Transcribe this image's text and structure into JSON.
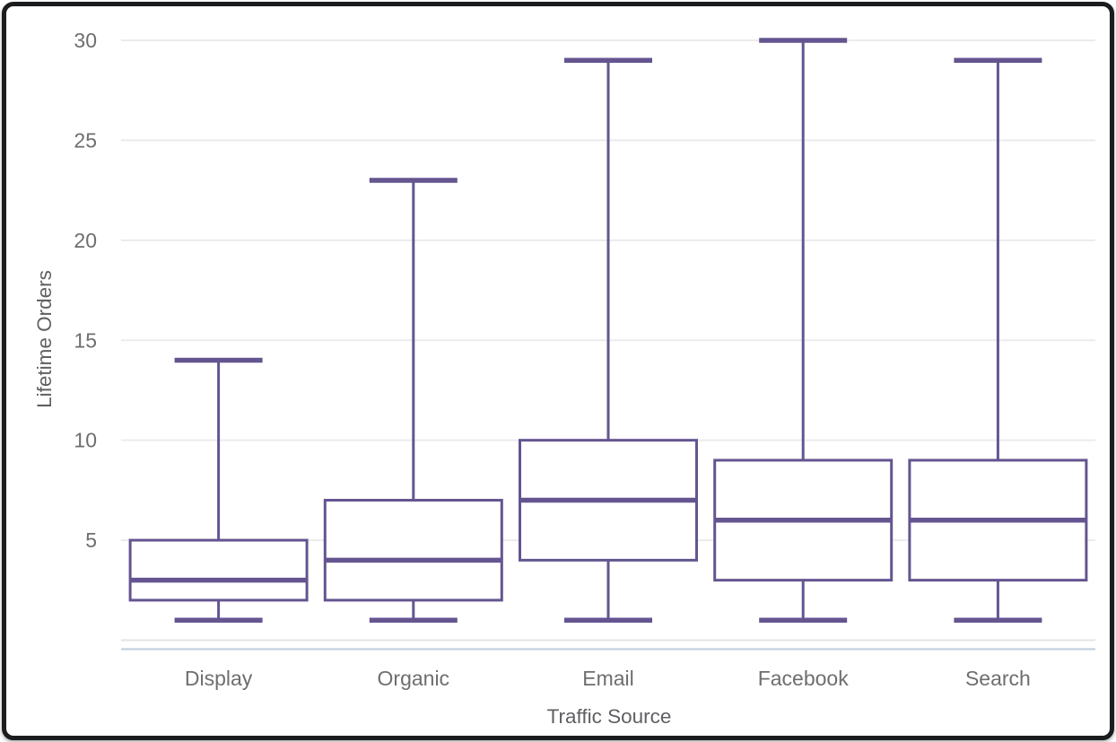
{
  "chart_data": {
    "type": "boxplot",
    "title": "",
    "xlabel": "Traffic Source",
    "ylabel": "Lifetime Orders",
    "categories": [
      "Display",
      "Organic",
      "Email",
      "Facebook",
      "Search"
    ],
    "series": [
      {
        "name": "Display",
        "min": 1,
        "q1": 2,
        "median": 3,
        "q3": 5,
        "max": 14
      },
      {
        "name": "Organic",
        "min": 1,
        "q1": 2,
        "median": 4,
        "q3": 7,
        "max": 23
      },
      {
        "name": "Email",
        "min": 1,
        "q1": 4,
        "median": 7,
        "q3": 10,
        "max": 29
      },
      {
        "name": "Facebook",
        "min": 1,
        "q1": 3,
        "median": 6,
        "q3": 9,
        "max": 30
      },
      {
        "name": "Search",
        "min": 1,
        "q1": 3,
        "median": 6,
        "q3": 9,
        "max": 29
      }
    ],
    "y_ticks": [
      5,
      10,
      15,
      20,
      25,
      30
    ],
    "ylim": [
      0,
      30
    ],
    "grid": true,
    "legend": "none",
    "colors": {
      "box_stroke": "#645590",
      "box_fill": "#ffffff",
      "grid_line": "#ebebeb",
      "zero_line": "#e4e4e4",
      "axis_line": "#ccd3e2",
      "tick_label": "#6e6e6e",
      "axis_title": "#5f6063",
      "frame_border": "#1a1c1e",
      "background": "#ffffff"
    }
  }
}
